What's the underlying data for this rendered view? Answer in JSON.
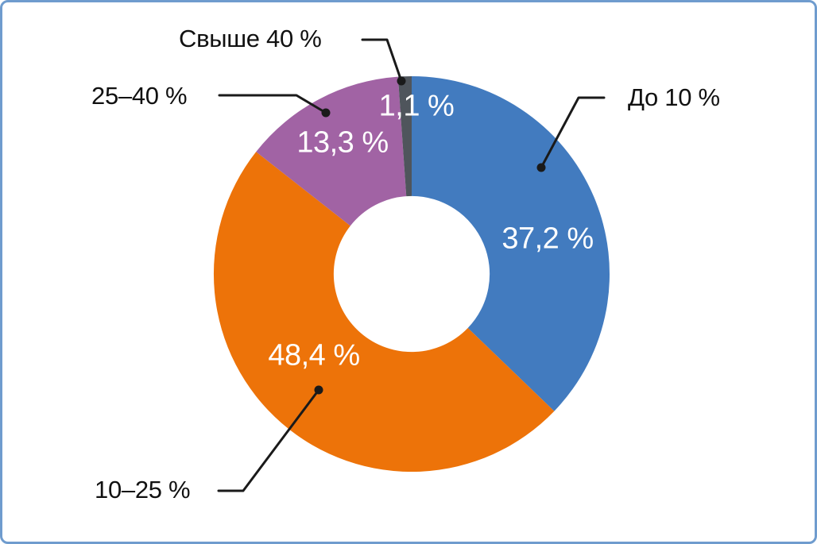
{
  "frame": {
    "background": "#FFFFFF",
    "border_color": "#6F9CCE"
  },
  "chart_data": {
    "type": "donut",
    "title": "",
    "direction": "clockwise",
    "start_angle_deg": 0,
    "inner_radius_ratio": 0.394,
    "total": 100,
    "legend_position": "callouts",
    "value_label_color": "#FFFFFF",
    "callout_text_color": "#111111",
    "leader_line_color": "#1A1A1A",
    "segments": [
      {
        "label": "До 10 %",
        "value": 37.2,
        "value_label": "37,2 %",
        "color": "#427BBF"
      },
      {
        "label": "10–25 %",
        "value": 48.4,
        "value_label": "48,4 %",
        "color": "#ED7309"
      },
      {
        "label": "25–40 %",
        "value": 13.3,
        "value_label": "13,3 %",
        "color": "#A163A4"
      },
      {
        "label": "Свыше 40 %",
        "value": 1.1,
        "value_label": "1,1 %",
        "color": "#4F555C"
      }
    ]
  }
}
